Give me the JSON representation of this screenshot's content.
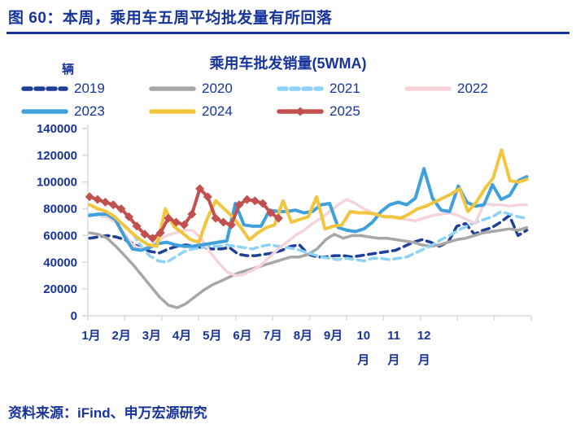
{
  "header": {
    "title": "图 60：本周，乘用车五周平均批发量有所回落"
  },
  "footer": {
    "source": "资料来源：iFind、申万宏源研究"
  },
  "colors": {
    "text": "#17349C",
    "axis": "#D9D9D9"
  },
  "chart_data": {
    "type": "line",
    "title": "乘用车批发销量(5WMA)",
    "unit_label": "辆",
    "grid": false,
    "legend_position": "top",
    "y_axis": {
      "min": 0,
      "max": 140000,
      "step": 20000,
      "ticks": [
        0,
        20000,
        40000,
        60000,
        80000,
        100000,
        120000,
        140000
      ]
    },
    "x_axis": {
      "months": [
        "1月",
        "2月",
        "3月",
        "4月",
        "5月",
        "6月",
        "7月",
        "8月",
        "9月",
        "10月",
        "11月",
        "12月"
      ],
      "boundary_ticks": 13
    },
    "legend_rows": [
      [
        0,
        1,
        2,
        3
      ],
      [
        4,
        5,
        6
      ]
    ],
    "series": [
      {
        "name": "2019",
        "color": "#1F3F99",
        "style": "dashed",
        "width": 3.5,
        "x_start": 0.004,
        "x_end": 0.99,
        "values": [
          58000,
          59000,
          60000,
          59000,
          57000,
          54000,
          50000,
          48000,
          47000,
          50000,
          52000,
          53000,
          52000,
          51000,
          50000,
          50000,
          51000,
          46000,
          45000,
          45000,
          46000,
          47000,
          49000,
          52000,
          53000,
          46000,
          44000,
          44000,
          45000,
          45000,
          44000,
          45000,
          46000,
          47000,
          48000,
          49000,
          52000,
          55000,
          57000,
          55000,
          52000,
          55000,
          67000,
          69000,
          61000,
          64000,
          66000,
          70000,
          75000,
          60000,
          64000
        ]
      },
      {
        "name": "2020",
        "color": "#A7A7A7",
        "style": "solid",
        "width": 3.5,
        "x_start": 0.004,
        "x_end": 0.99,
        "values": [
          62000,
          61000,
          58000,
          52000,
          45000,
          38000,
          30000,
          22000,
          14000,
          8000,
          6000,
          9000,
          14000,
          19000,
          23000,
          26000,
          29000,
          32000,
          34000,
          36000,
          38000,
          40000,
          42000,
          44000,
          44000,
          46000,
          50000,
          57000,
          61000,
          58000,
          60000,
          60000,
          59000,
          58000,
          58000,
          57000,
          56000,
          55000,
          53000,
          52000,
          53000,
          55000,
          57000,
          58000,
          60000,
          62000,
          63000,
          64000,
          65000,
          64000,
          66000
        ]
      },
      {
        "name": "2021",
        "color": "#8ED2F5",
        "style": "dashed",
        "width": 3.5,
        "x_start": 0.004,
        "x_end": 0.99,
        "values": [
          76000,
          75000,
          74000,
          71000,
          68000,
          62000,
          52000,
          45000,
          41000,
          40000,
          44000,
          48000,
          50000,
          51000,
          52000,
          52000,
          53000,
          52000,
          51000,
          50000,
          52000,
          53000,
          52000,
          51000,
          50000,
          48000,
          46000,
          44000,
          43000,
          42000,
          43000,
          42000,
          41000,
          43000,
          43000,
          42000,
          43000,
          44000,
          47000,
          50000,
          53000,
          57000,
          60000,
          64000,
          67000,
          70000,
          72000,
          74000,
          78000,
          76000,
          74000,
          73000
        ]
      },
      {
        "name": "2022",
        "color": "#F5D3D9",
        "style": "solid",
        "width": 3.5,
        "x_start": 0.004,
        "x_end": 0.99,
        "values": [
          75000,
          76000,
          74000,
          70000,
          62000,
          53000,
          50000,
          52000,
          56000,
          60000,
          62000,
          64000,
          64000,
          58000,
          48000,
          40000,
          33000,
          30000,
          31000,
          34000,
          38000,
          44000,
          50000,
          55000,
          60000,
          64000,
          69000,
          73000,
          78000,
          83000,
          87000,
          84000,
          80000,
          77000,
          75000,
          74000,
          73000,
          72000,
          71000,
          73000,
          75000,
          76000,
          77000,
          75000,
          72000,
          69000,
          84000,
          83000,
          83000,
          82000,
          83000,
          83000
        ]
      },
      {
        "name": "2023",
        "color": "#3FA0DC",
        "style": "solid",
        "width": 4,
        "x_start": 0.004,
        "x_end": 0.99,
        "values": [
          75000,
          76000,
          76000,
          72000,
          60000,
          50000,
          49000,
          51000,
          54000,
          55000,
          53000,
          52000,
          52000,
          53000,
          54000,
          55000,
          56000,
          84000,
          68000,
          67000,
          67000,
          79000,
          78000,
          78000,
          79000,
          77000,
          78000,
          83000,
          84000,
          66000,
          64000,
          63000,
          65000,
          70000,
          78000,
          83000,
          85000,
          83000,
          88000,
          110000,
          88000,
          79000,
          78000,
          97000,
          85000,
          82000,
          83000,
          98000,
          87000,
          90000,
          101000,
          104000
        ]
      },
      {
        "name": "2024",
        "color": "#F2C53E",
        "style": "solid",
        "width": 4,
        "x_start": 0.004,
        "x_end": 0.99,
        "values": [
          83000,
          80000,
          78000,
          74000,
          68000,
          62000,
          57000,
          53000,
          52000,
          80000,
          67000,
          62000,
          57000,
          55000,
          73000,
          86000,
          80000,
          74000,
          66000,
          57000,
          62000,
          66000,
          68000,
          86000,
          70000,
          72000,
          74000,
          89000,
          65000,
          67000,
          68000,
          78000,
          77000,
          77000,
          76000,
          74000,
          74000,
          73000,
          76000,
          80000,
          82000,
          85000,
          88000,
          91000,
          95000,
          78000,
          85000,
          95000,
          103000,
          124000,
          101000,
          100000,
          102000
        ]
      },
      {
        "name": "2025",
        "color": "#C2504E",
        "style": "solid",
        "width": 4,
        "marker": "diamond",
        "x_start": 0.004,
        "x_end": 0.43,
        "values": [
          89000,
          87000,
          85000,
          83000,
          80000,
          74000,
          67000,
          61000,
          58000,
          62000,
          73000,
          70000,
          68000,
          76000,
          95000,
          89000,
          73000,
          70000,
          68000,
          83000,
          87000,
          86000,
          84000,
          77000,
          73000
        ]
      }
    ]
  }
}
